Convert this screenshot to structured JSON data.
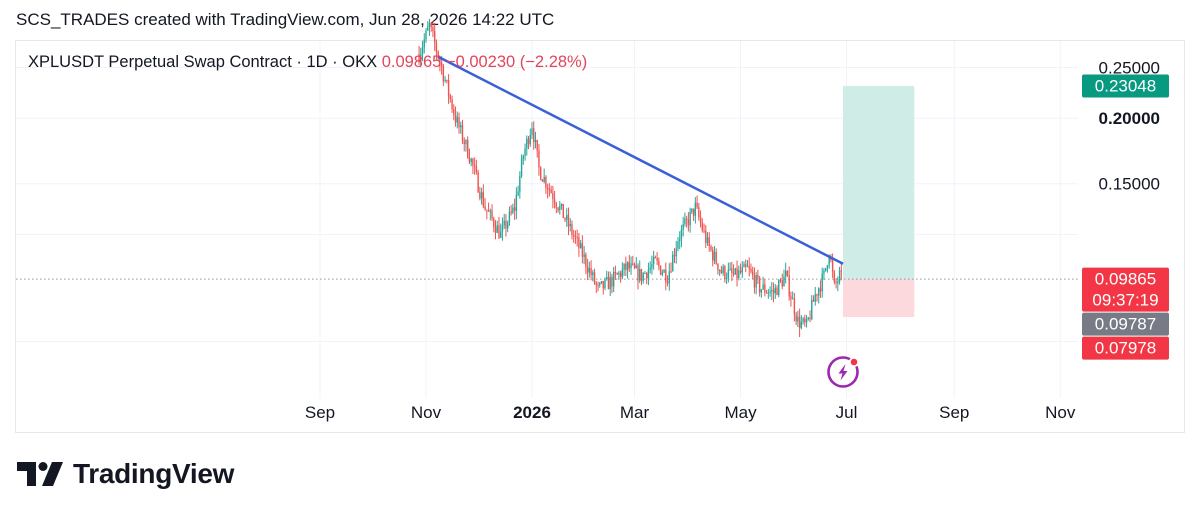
{
  "header": {
    "caption": "SCS_TRADES created with TradingView.com, Jun 28, 2026 14:22 UTC"
  },
  "legend": {
    "symbol": "XPLUSDT Perpetual Swap Contract · 1D · OKX",
    "price": "0.09865",
    "change": "−0.00230 (−2.28%)"
  },
  "branding": {
    "name": "TradingView",
    "logo_icon": "tradingview-logo-icon"
  },
  "colors": {
    "up": "#26a69a",
    "down": "#ef5350",
    "trendline": "#3a5fd6",
    "target_zone": "#cfece6",
    "stop_zone": "#fbd9dc",
    "badge_green": "#089981",
    "badge_red": "#f23645",
    "badge_gray": "#787b86"
  },
  "chart_data": {
    "type": "candlestick",
    "title": "XPLUSDT Perpetual Swap Contract · 1D · OKX",
    "y_scale": "log",
    "ylim": [
      0.0585,
      0.2808
    ],
    "x_ticks": [
      {
        "label": "Sep",
        "date": "2025-09-01",
        "bold": false
      },
      {
        "label": "Nov",
        "date": "2025-11-01",
        "bold": false
      },
      {
        "label": "2026",
        "date": "2026-01-01",
        "bold": true
      },
      {
        "label": "Mar",
        "date": "2026-03-01",
        "bold": false
      },
      {
        "label": "May",
        "date": "2026-05-01",
        "bold": false
      },
      {
        "label": "Jul",
        "date": "2026-07-01",
        "bold": false
      },
      {
        "label": "Sep",
        "date": "2026-09-01",
        "bold": false
      },
      {
        "label": "Nov",
        "date": "2026-11-01",
        "bold": false
      }
    ],
    "y_ticks": [
      {
        "value": 0.25,
        "label": "0.25000",
        "bold": false
      },
      {
        "value": 0.2,
        "label": "0.20000",
        "bold": true
      },
      {
        "value": 0.15,
        "label": "0.15000",
        "bold": false
      }
    ],
    "price_path": [
      [
        "2025-10-28",
        0.265
      ],
      [
        "2025-11-03",
        0.3
      ],
      [
        "2025-11-10",
        0.25
      ],
      [
        "2025-11-18",
        0.2
      ],
      [
        "2025-11-26",
        0.17
      ],
      [
        "2025-12-05",
        0.135
      ],
      [
        "2025-12-14",
        0.12
      ],
      [
        "2025-12-22",
        0.135
      ],
      [
        "2025-12-27",
        0.17
      ],
      [
        "2026-01-01",
        0.195
      ],
      [
        "2026-01-05",
        0.16
      ],
      [
        "2026-01-12",
        0.145
      ],
      [
        "2026-01-22",
        0.125
      ],
      [
        "2026-01-30",
        0.11
      ],
      [
        "2026-02-08",
        0.094
      ],
      [
        "2026-02-16",
        0.098
      ],
      [
        "2026-02-25",
        0.104
      ],
      [
        "2026-03-05",
        0.1
      ],
      [
        "2026-03-13",
        0.106
      ],
      [
        "2026-03-20",
        0.1
      ],
      [
        "2026-03-26",
        0.118
      ],
      [
        "2026-04-05",
        0.135
      ],
      [
        "2026-04-12",
        0.115
      ],
      [
        "2026-04-20",
        0.102
      ],
      [
        "2026-04-28",
        0.1
      ],
      [
        "2026-05-05",
        0.103
      ],
      [
        "2026-05-12",
        0.095
      ],
      [
        "2026-05-20",
        0.093
      ],
      [
        "2026-05-27",
        0.1
      ],
      [
        "2026-06-03",
        0.082
      ],
      [
        "2026-06-08",
        0.08
      ],
      [
        "2026-06-13",
        0.092
      ],
      [
        "2026-06-18",
        0.1
      ],
      [
        "2026-06-21",
        0.112
      ],
      [
        "2026-06-24",
        0.095
      ],
      [
        "2026-06-27",
        0.1
      ],
      [
        "2026-06-28",
        0.0987
      ]
    ],
    "trendline": {
      "start": {
        "date": "2025-11-08",
        "value": 0.262
      },
      "end": {
        "date": "2026-06-29",
        "value": 0.1055
      }
    },
    "position": {
      "entry": 0.09865,
      "target": 0.23048,
      "stop": 0.0835,
      "start_date": "2026-06-29",
      "end_date": "2026-08-09"
    },
    "current_price_line": 0.09865,
    "badges": [
      {
        "value": 0.23048,
        "lines": [
          "0.23048"
        ],
        "color": "#089981"
      },
      {
        "value": 0.09865,
        "lines": [
          "0.09865",
          "09:37:19"
        ],
        "color": "#f23645"
      },
      {
        "value": 0.09787,
        "lines": [
          "0.09787"
        ],
        "color": "#787b86"
      },
      {
        "value": 0.07978,
        "lines": [
          "0.07978"
        ],
        "color": "#f23645"
      }
    ]
  }
}
